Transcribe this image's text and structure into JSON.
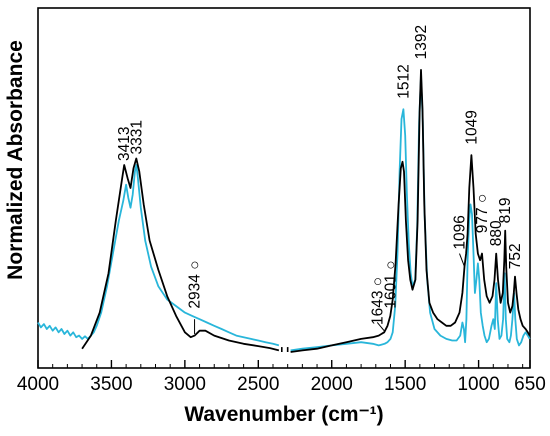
{
  "chart_data": {
    "type": "line",
    "title": "",
    "xlabel": "Wavenumber (cm⁻¹)",
    "ylabel": "Normalized Absorbance",
    "xlim": [
      4000,
      650
    ],
    "x_reversed": true,
    "y_ticks_shown": false,
    "xticks": [
      {
        "value": 4000,
        "label": "4000"
      },
      {
        "value": 3500,
        "label": "3500"
      },
      {
        "value": 3000,
        "label": "3000"
      },
      {
        "value": 2500,
        "label": "2500"
      },
      {
        "value": 2000,
        "label": "2000"
      },
      {
        "value": 1500,
        "label": "1500"
      },
      {
        "value": 1000,
        "label": "1000"
      },
      {
        "value": 650,
        "label": "650"
      }
    ],
    "axis_break": {
      "from": 2340,
      "to": 2300
    },
    "series": [
      {
        "color": "#000000",
        "points": [
          [
            3700,
            0.01
          ],
          [
            3640,
            0.05
          ],
          [
            3580,
            0.12
          ],
          [
            3520,
            0.24
          ],
          [
            3470,
            0.4
          ],
          [
            3430,
            0.52
          ],
          [
            3413,
            0.57
          ],
          [
            3390,
            0.53
          ],
          [
            3370,
            0.5
          ],
          [
            3350,
            0.56
          ],
          [
            3331,
            0.59
          ],
          [
            3310,
            0.55
          ],
          [
            3280,
            0.45
          ],
          [
            3240,
            0.34
          ],
          [
            3180,
            0.25
          ],
          [
            3120,
            0.17
          ],
          [
            3060,
            0.11
          ],
          [
            3000,
            0.06
          ],
          [
            2960,
            0.045
          ],
          [
            2934,
            0.05
          ],
          [
            2900,
            0.065
          ],
          [
            2860,
            0.065
          ],
          [
            2800,
            0.05
          ],
          [
            2700,
            0.035
          ],
          [
            2600,
            0.025
          ],
          [
            2500,
            0.018
          ],
          [
            2420,
            0.012
          ],
          [
            2360,
            0.005
          ],
          [
            2280,
            0.0
          ],
          [
            2200,
            0.005
          ],
          [
            2100,
            0.01
          ],
          [
            2000,
            0.02
          ],
          [
            1900,
            0.03
          ],
          [
            1800,
            0.04
          ],
          [
            1720,
            0.045
          ],
          [
            1680,
            0.05
          ],
          [
            1643,
            0.06
          ],
          [
            1620,
            0.08
          ],
          [
            1601,
            0.11
          ],
          [
            1585,
            0.16
          ],
          [
            1565,
            0.27
          ],
          [
            1545,
            0.45
          ],
          [
            1530,
            0.56
          ],
          [
            1518,
            0.58
          ],
          [
            1508,
            0.55
          ],
          [
            1495,
            0.4
          ],
          [
            1480,
            0.28
          ],
          [
            1465,
            0.22
          ],
          [
            1450,
            0.19
          ],
          [
            1430,
            0.22
          ],
          [
            1415,
            0.4
          ],
          [
            1402,
            0.73
          ],
          [
            1392,
            0.86
          ],
          [
            1382,
            0.74
          ],
          [
            1370,
            0.45
          ],
          [
            1355,
            0.25
          ],
          [
            1335,
            0.15
          ],
          [
            1310,
            0.12
          ],
          [
            1280,
            0.1
          ],
          [
            1250,
            0.09
          ],
          [
            1220,
            0.08
          ],
          [
            1190,
            0.08
          ],
          [
            1160,
            0.09
          ],
          [
            1130,
            0.12
          ],
          [
            1110,
            0.18
          ],
          [
            1096,
            0.26
          ],
          [
            1085,
            0.3
          ],
          [
            1075,
            0.36
          ],
          [
            1063,
            0.5
          ],
          [
            1049,
            0.6
          ],
          [
            1035,
            0.5
          ],
          [
            1020,
            0.36
          ],
          [
            1005,
            0.3
          ],
          [
            990,
            0.28
          ],
          [
            977,
            0.3
          ],
          [
            962,
            0.22
          ],
          [
            945,
            0.17
          ],
          [
            925,
            0.15
          ],
          [
            905,
            0.17
          ],
          [
            892,
            0.22
          ],
          [
            880,
            0.3
          ],
          [
            868,
            0.22
          ],
          [
            850,
            0.15
          ],
          [
            835,
            0.18
          ],
          [
            825,
            0.28
          ],
          [
            819,
            0.37
          ],
          [
            812,
            0.26
          ],
          [
            800,
            0.15
          ],
          [
            785,
            0.12
          ],
          [
            770,
            0.14
          ],
          [
            760,
            0.18
          ],
          [
            752,
            0.23
          ],
          [
            742,
            0.18
          ],
          [
            730,
            0.13
          ],
          [
            715,
            0.1
          ],
          [
            700,
            0.08
          ],
          [
            680,
            0.07
          ],
          [
            665,
            0.06
          ],
          [
            652,
            0.05
          ]
        ]
      },
      {
        "color": "#29b6da",
        "points": [
          [
            4000,
            0.09
          ],
          [
            3980,
            0.075
          ],
          [
            3960,
            0.085
          ],
          [
            3940,
            0.07
          ],
          [
            3920,
            0.08
          ],
          [
            3900,
            0.065
          ],
          [
            3880,
            0.075
          ],
          [
            3860,
            0.06
          ],
          [
            3840,
            0.07
          ],
          [
            3820,
            0.055
          ],
          [
            3800,
            0.065
          ],
          [
            3780,
            0.05
          ],
          [
            3760,
            0.06
          ],
          [
            3740,
            0.045
          ],
          [
            3720,
            0.05
          ],
          [
            3700,
            0.04
          ],
          [
            3680,
            0.048
          ],
          [
            3660,
            0.04
          ],
          [
            3640,
            0.05
          ],
          [
            3620,
            0.06
          ],
          [
            3600,
            0.08
          ],
          [
            3570,
            0.12
          ],
          [
            3530,
            0.2
          ],
          [
            3490,
            0.3
          ],
          [
            3450,
            0.4
          ],
          [
            3420,
            0.46
          ],
          [
            3400,
            0.51
          ],
          [
            3385,
            0.47
          ],
          [
            3370,
            0.44
          ],
          [
            3355,
            0.48
          ],
          [
            3340,
            0.55
          ],
          [
            3330,
            0.57
          ],
          [
            3320,
            0.53
          ],
          [
            3300,
            0.44
          ],
          [
            3270,
            0.34
          ],
          [
            3230,
            0.26
          ],
          [
            3180,
            0.2
          ],
          [
            3120,
            0.16
          ],
          [
            3060,
            0.14
          ],
          [
            3000,
            0.12
          ],
          [
            2950,
            0.11
          ],
          [
            2900,
            0.1
          ],
          [
            2850,
            0.09
          ],
          [
            2800,
            0.08
          ],
          [
            2750,
            0.07
          ],
          [
            2700,
            0.06
          ],
          [
            2650,
            0.05
          ],
          [
            2600,
            0.045
          ],
          [
            2550,
            0.04
          ],
          [
            2500,
            0.035
          ],
          [
            2450,
            0.03
          ],
          [
            2400,
            0.025
          ],
          [
            2360,
            0.02
          ],
          [
            2280,
            0.005
          ],
          [
            2200,
            0.01
          ],
          [
            2100,
            0.015
          ],
          [
            2000,
            0.02
          ],
          [
            1900,
            0.025
          ],
          [
            1800,
            0.03
          ],
          [
            1720,
            0.025
          ],
          [
            1680,
            0.02
          ],
          [
            1640,
            0.025
          ],
          [
            1620,
            0.03
          ],
          [
            1600,
            0.04
          ],
          [
            1585,
            0.06
          ],
          [
            1568,
            0.14
          ],
          [
            1552,
            0.3
          ],
          [
            1538,
            0.55
          ],
          [
            1525,
            0.71
          ],
          [
            1512,
            0.74
          ],
          [
            1500,
            0.66
          ],
          [
            1488,
            0.48
          ],
          [
            1475,
            0.33
          ],
          [
            1462,
            0.24
          ],
          [
            1450,
            0.2
          ],
          [
            1432,
            0.22
          ],
          [
            1418,
            0.38
          ],
          [
            1405,
            0.7
          ],
          [
            1392,
            0.84
          ],
          [
            1380,
            0.7
          ],
          [
            1368,
            0.42
          ],
          [
            1350,
            0.22
          ],
          [
            1330,
            0.12
          ],
          [
            1300,
            0.07
          ],
          [
            1260,
            0.05
          ],
          [
            1220,
            0.04
          ],
          [
            1180,
            0.035
          ],
          [
            1150,
            0.035
          ],
          [
            1125,
            0.05
          ],
          [
            1110,
            0.09
          ],
          [
            1100,
            0.07
          ],
          [
            1092,
            0.03
          ],
          [
            1083,
            0.1
          ],
          [
            1075,
            0.28
          ],
          [
            1065,
            0.4
          ],
          [
            1055,
            0.45
          ],
          [
            1045,
            0.42
          ],
          [
            1035,
            0.3
          ],
          [
            1025,
            0.18
          ],
          [
            1015,
            0.22
          ],
          [
            1005,
            0.27
          ],
          [
            995,
            0.22
          ],
          [
            985,
            0.12
          ],
          [
            972,
            0.08
          ],
          [
            960,
            0.05
          ],
          [
            945,
            0.03
          ],
          [
            930,
            0.04
          ],
          [
            912,
            0.08
          ],
          [
            900,
            0.1
          ],
          [
            890,
            0.07
          ],
          [
            880,
            0.21
          ],
          [
            870,
            0.1
          ],
          [
            858,
            0.04
          ],
          [
            845,
            0.05
          ],
          [
            833,
            0.1
          ],
          [
            823,
            0.24
          ],
          [
            815,
            0.1
          ],
          [
            805,
            0.04
          ],
          [
            790,
            0.03
          ],
          [
            780,
            0.05
          ],
          [
            770,
            0.1
          ],
          [
            758,
            0.18
          ],
          [
            750,
            0.1
          ],
          [
            740,
            0.04
          ],
          [
            725,
            0.02
          ],
          [
            710,
            0.03
          ],
          [
            695,
            0.05
          ],
          [
            680,
            0.06
          ],
          [
            665,
            0.05
          ],
          [
            652,
            0.04
          ]
        ]
      }
    ],
    "annotations": [
      {
        "text": "3413",
        "x": 3413,
        "y": 0.57,
        "rotate": true
      },
      {
        "text": "3331",
        "x": 3331,
        "y": 0.59,
        "rotate": true
      },
      {
        "text": "2934 ○",
        "x": 2934,
        "y": 0.12,
        "rotate": true
      },
      {
        "text": "1643 ○",
        "x": 1690,
        "y": 0.07,
        "rotate": true
      },
      {
        "text": "1601 ○",
        "x": 1601,
        "y": 0.12,
        "rotate": true
      },
      {
        "text": "1512",
        "x": 1512,
        "y": 0.76,
        "rotate": true
      },
      {
        "text": "1392",
        "x": 1392,
        "y": 0.88,
        "rotate": true
      },
      {
        "text": "1096",
        "x": 1130,
        "y": 0.3,
        "rotate": true
      },
      {
        "text": "1049",
        "x": 1049,
        "y": 0.62,
        "rotate": true
      },
      {
        "text": "977 ○",
        "x": 977,
        "y": 0.35,
        "rotate": true
      },
      {
        "text": "880",
        "x": 880,
        "y": 0.31,
        "rotate": true
      },
      {
        "text": "819",
        "x": 819,
        "y": 0.38,
        "rotate": true
      },
      {
        "text": "752",
        "x": 752,
        "y": 0.24,
        "rotate": true
      }
    ],
    "leader_lines": [
      {
        "from": [
          1643,
          0.065
        ],
        "to": [
          1690,
          0.09
        ]
      },
      {
        "from": [
          2934,
          0.055
        ],
        "to": [
          2934,
          0.1
        ]
      },
      {
        "from": [
          1096,
          0.26
        ],
        "to": [
          1130,
          0.3
        ]
      }
    ]
  }
}
